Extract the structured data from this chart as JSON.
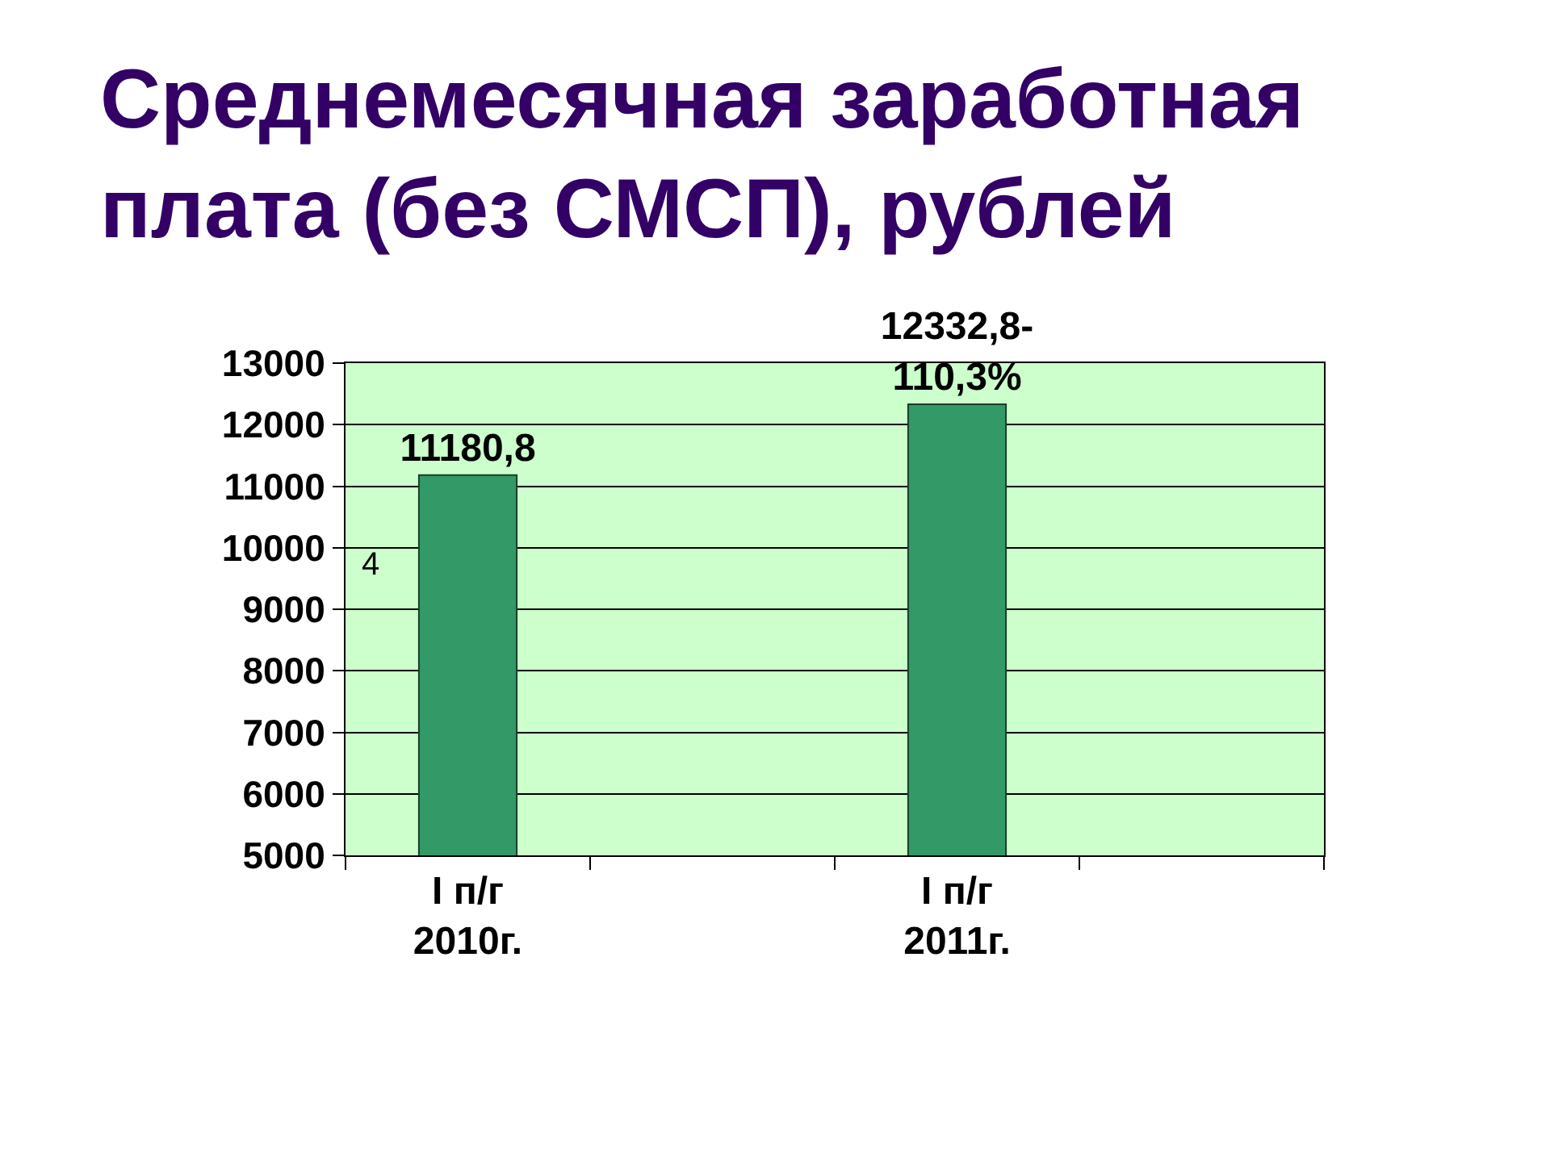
{
  "chart_data": {
    "type": "bar",
    "title": "Среднемесячная заработная\nплата (без СМСП), рублей",
    "categories": [
      "I п/г\n2010г.",
      null,
      "I п/г\n2011г.",
      null
    ],
    "values": [
      11180.8,
      null,
      12332.8,
      null
    ],
    "color": "#339966",
    "value_labels": [
      "11180,8",
      null,
      "12332,8-\n110,3%",
      null
    ],
    "ylim": [
      5000,
      13000
    ],
    "yticks": [
      5000,
      6000,
      7000,
      8000,
      9000,
      10000,
      11000,
      12000,
      13000
    ],
    "grid": "y",
    "annotations": [
      "4"
    ]
  }
}
